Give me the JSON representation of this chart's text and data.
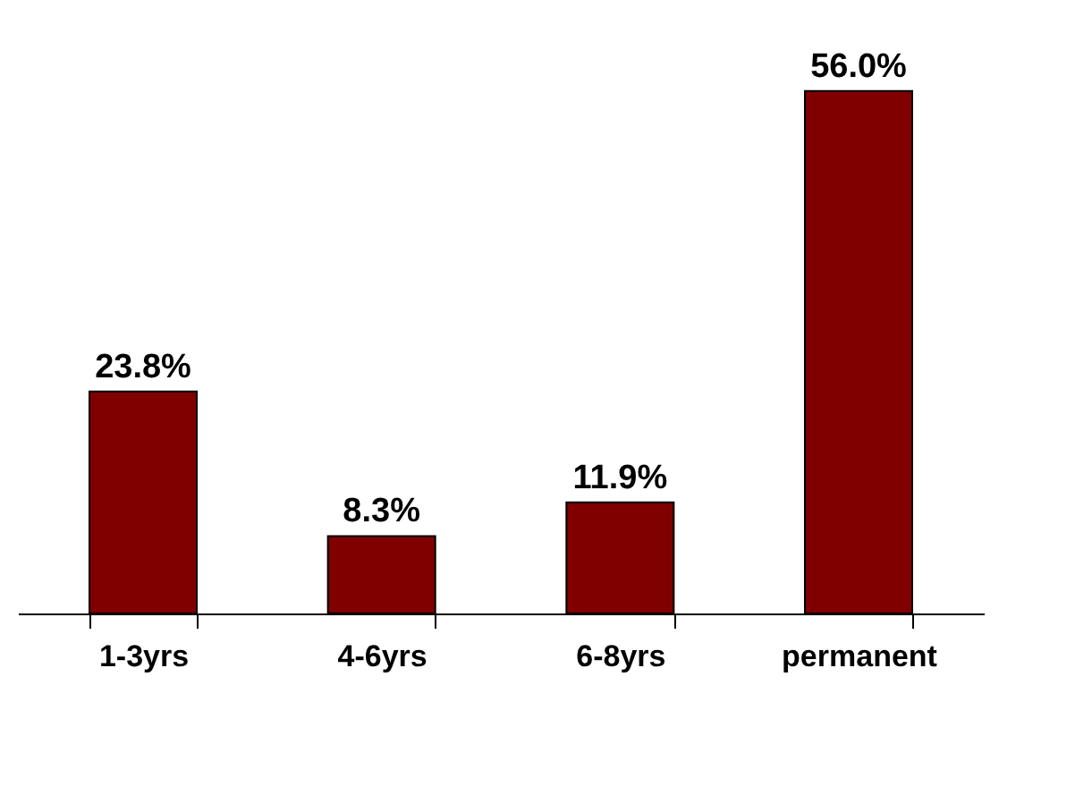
{
  "chart_data": {
    "type": "bar",
    "categories": [
      "1-3yrs",
      "4-6yrs",
      "6-8yrs",
      "permanent"
    ],
    "values": [
      23.8,
      8.3,
      11.9,
      56.0
    ],
    "value_labels": [
      "23.8%",
      "8.3%",
      "11.9%",
      "56.0%"
    ],
    "color": "#800000",
    "grid": false,
    "tick_labels": "x"
  }
}
